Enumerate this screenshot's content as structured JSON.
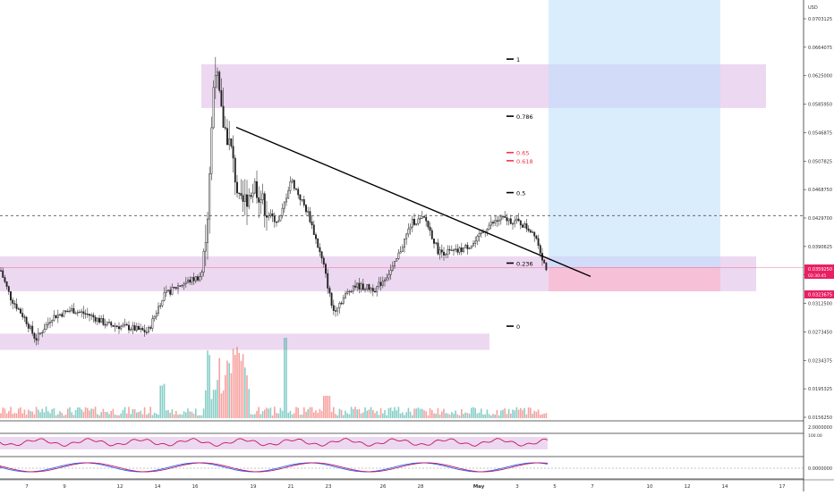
{
  "chart_data": {
    "type": "candlestick",
    "currency": "USD",
    "price_axis_ticks": [
      "0.0703125",
      "0.0664075",
      "0.0625000",
      "0.0585950",
      "0.0546875",
      "0.0507825",
      "0.0468750",
      "0.0429700",
      "0.0390625",
      "0.0351575",
      "0.0312500",
      "0.0273450",
      "0.0234375",
      "0.0195325",
      "0.0156250"
    ],
    "price_min": 0.0156,
    "price_max": 0.071,
    "current_price_label": "0.0359250",
    "countdown_label": "02:30:45",
    "second_price_label": "0.0323675",
    "time_axis_labels": [
      "7",
      "9",
      "12",
      "14",
      "16",
      "19",
      "21",
      "23",
      "26",
      "28",
      "May",
      "3",
      "5",
      "7",
      "10",
      "12",
      "14",
      "17"
    ],
    "fib_levels": [
      {
        "label": "1",
        "price": 0.064,
        "color": "#000000"
      },
      {
        "label": "0.786",
        "price": 0.0563,
        "color": "#000000"
      },
      {
        "label": "0.65",
        "price": 0.0514,
        "color": "#f23645"
      },
      {
        "label": "0.618",
        "price": 0.0503,
        "color": "#f23645"
      },
      {
        "label": "0.5",
        "price": 0.046,
        "color": "#000000"
      },
      {
        "label": "0.236",
        "price": 0.0365,
        "color": "#000000"
      },
      {
        "label": "0",
        "price": 0.028,
        "color": "#000000"
      }
    ],
    "dashed_level_price": 0.0429,
    "pink_zones": [
      {
        "p_top": 0.0633,
        "p_bot": 0.0574
      },
      {
        "p_top": 0.0374,
        "p_bot": 0.0327
      },
      {
        "p_top": 0.027,
        "p_bot": 0.0248
      }
    ],
    "trendline": {
      "p1": 0.0548,
      "p2": 0.0347
    },
    "position_box": {
      "entry": 0.0359,
      "stop": 0.0327,
      "target": 0.072
    },
    "oscillator_1_label": "100.00",
    "oscillator_1_scale": "2.0000000",
    "oscillator_2_scale": "0.0000000",
    "colors": {
      "up": "#26a69a",
      "down": "#ef5350",
      "zone": "#e1bee7",
      "target": "#bbdefb",
      "stop": "#f8bbd0",
      "price_label": "#e91e63"
    }
  }
}
